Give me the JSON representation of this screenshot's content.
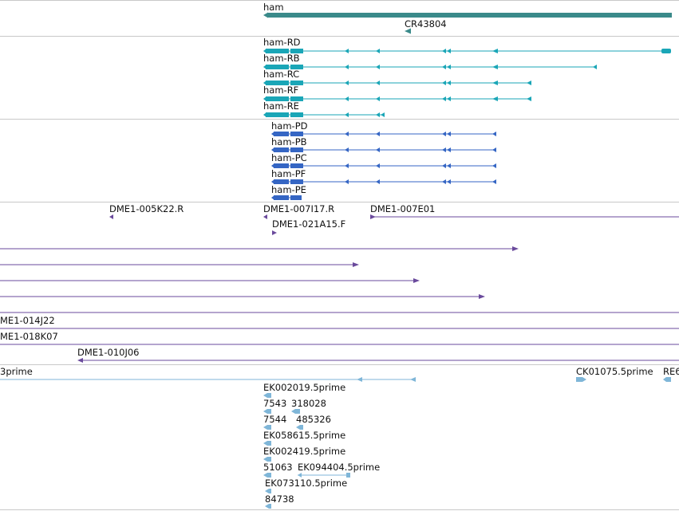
{
  "colors": {
    "gene": "#3a8a8a",
    "rna": "#1aa6b7",
    "protein": "#3566c4",
    "clone": "#6a4a9c",
    "est": "#7fb6d8",
    "separator": "#c8c8c8"
  },
  "tracks": {
    "gene": {
      "labels": [
        "ham",
        "CR43804"
      ]
    },
    "rna": {
      "labels": [
        "ham-RD",
        "ham-RB",
        "ham-RC",
        "ham-RF",
        "ham-RE"
      ]
    },
    "protein": {
      "labels": [
        "ham-PD",
        "ham-PB",
        "ham-PC",
        "ham-PF",
        "ham-PE"
      ]
    },
    "clone": {
      "labels": [
        "DME1-005K22.R",
        "DME1-007I17.R",
        "DME1-007E01",
        "DME1-021A15.F",
        "ME1-014J22",
        "ME1-018K07",
        "DME1-010J06"
      ]
    },
    "est": {
      "labels": [
        "3prime",
        "CK01075.5prime",
        "RE6",
        "EK002019.5prime",
        "7543",
        "318028",
        "7544",
        "485326",
        "EK058615.5prime",
        "EK002419.5prime",
        "51063",
        "EK094404.5prime",
        "EK073110.5prime",
        "84738"
      ]
    }
  }
}
